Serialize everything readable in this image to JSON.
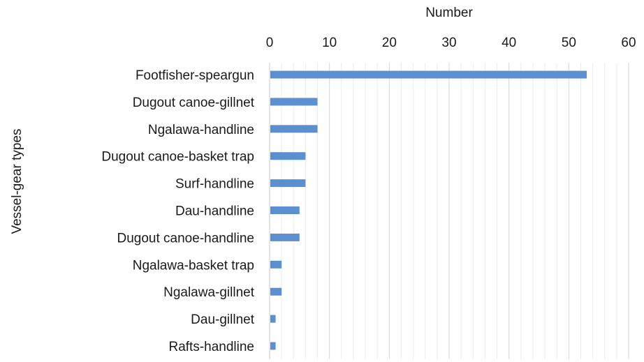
{
  "chart_data": {
    "type": "bar",
    "orientation": "horizontal",
    "title": "",
    "xlabel": "Number",
    "ylabel": "Vessel-gear types",
    "xlim": [
      0,
      60
    ],
    "xticks": [
      0,
      10,
      20,
      30,
      40,
      50,
      60
    ],
    "x_axis_position": "top",
    "grid": true,
    "legend": "none",
    "bar_color": "#5b8fd0",
    "categories": [
      "Footfisher-speargun",
      "Dugout canoe-gillnet",
      "Ngalawa-handline",
      "Dugout canoe-basket trap",
      "Surf-handline",
      "Dau-handline",
      "Dugout canoe-handline",
      "Ngalawa-basket trap",
      "Ngalawa-gillnet",
      "Dau-gillnet",
      "Rafts-handline"
    ],
    "values": [
      53,
      8,
      8,
      6,
      6,
      5,
      5,
      2,
      2,
      1,
      1
    ]
  }
}
